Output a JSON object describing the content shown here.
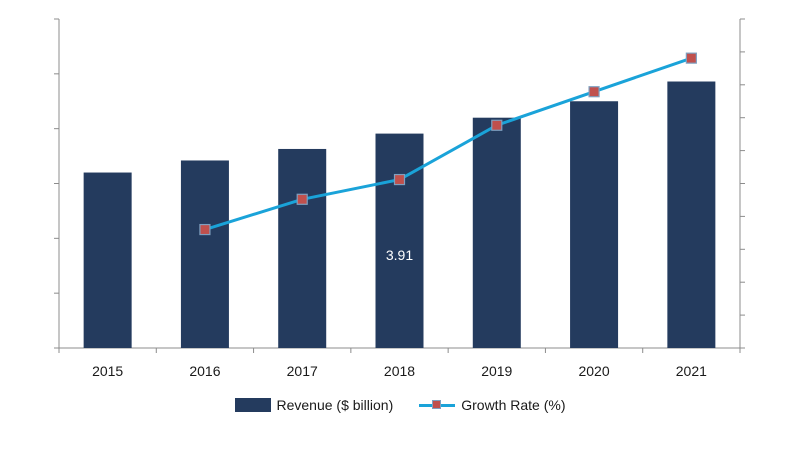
{
  "chart_data": {
    "type": "bar+line",
    "categories": [
      "2015",
      "2016",
      "2017",
      "2018",
      "2019",
      "2020",
      "2021"
    ],
    "series": [
      {
        "name": "Revenue ($ billion)",
        "type": "bar",
        "axis": "left",
        "color": "#243b5e",
        "values": [
          3.2,
          3.42,
          3.63,
          3.91,
          4.2,
          4.5,
          4.86
        ]
      },
      {
        "name": "Growth Rate (%)",
        "type": "line",
        "axis": "right",
        "color": "#1aa3d9",
        "marker_color": "#c0504d",
        "values": [
          null,
          3.6,
          4.52,
          5.12,
          6.77,
          7.79,
          8.81
        ]
      }
    ],
    "left_axis": {
      "ylim": [
        0,
        6
      ],
      "tick_step": 1
    },
    "right_axis": {
      "ylim": [
        0,
        10
      ],
      "tick_step": 1
    },
    "data_labels": [
      {
        "category": "2018",
        "series": "Revenue ($ billion)",
        "text": "3.91"
      }
    ],
    "grid": false,
    "legend_position": "bottom",
    "title": "",
    "xlabel": "",
    "ylabel": ""
  }
}
